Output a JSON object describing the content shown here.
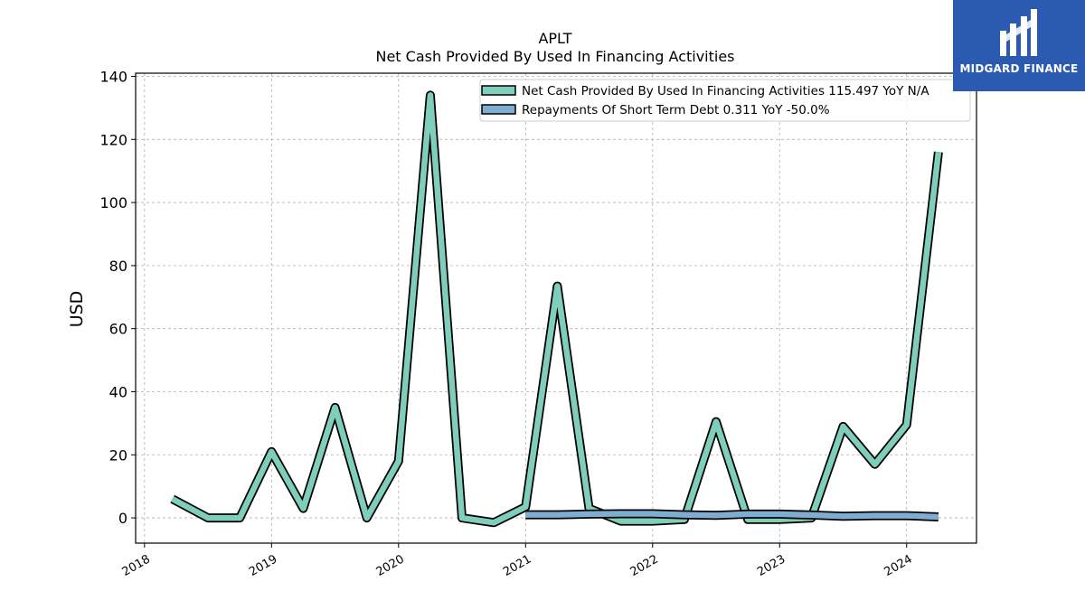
{
  "chart_data": {
    "type": "line",
    "title": "APLT",
    "subtitle": "Net Cash Provided By Used In Financing Activities",
    "ylabel": "USD",
    "xlabel": "",
    "ylim": [
      -8,
      141
    ],
    "xlim": [
      2017.93,
      2024.55
    ],
    "yticks": [
      0,
      20,
      40,
      60,
      80,
      100,
      120,
      140
    ],
    "xticks": [
      2018,
      2019,
      2020,
      2021,
      2022,
      2023,
      2024
    ],
    "grid": true,
    "legend_position": "top-right",
    "series": [
      {
        "name": "Net Cash Provided By Used In Financing Activities  115.497 YoY N/A",
        "color": "#7fcdbb",
        "x": [
          2018.22,
          2018.5,
          2018.75,
          2019.0,
          2019.25,
          2019.5,
          2019.75,
          2020.0,
          2020.25,
          2020.5,
          2020.75,
          2021.0,
          2021.25,
          2021.5,
          2021.75,
          2022.0,
          2022.25,
          2022.5,
          2022.75,
          2023.0,
          2023.25,
          2023.5,
          2023.75,
          2024.0,
          2024.25
        ],
        "y": [
          6,
          0,
          0,
          21,
          3,
          35,
          0,
          18,
          134,
          0,
          -1.5,
          3.5,
          73.5,
          3,
          -1,
          -1,
          -0.5,
          30.5,
          -0.5,
          -0.5,
          0,
          29,
          17,
          29.5,
          116
        ]
      },
      {
        "name": "Repayments Of Short Term Debt  0.311 YoY -50.0%",
        "color": "#7fadd1",
        "x": [
          2021.0,
          2021.25,
          2021.5,
          2021.75,
          2022.0,
          2022.25,
          2022.5,
          2022.75,
          2023.0,
          2023.25,
          2023.5,
          2023.75,
          2024.0,
          2024.25
        ],
        "y": [
          1.0,
          1.0,
          1.2,
          1.3,
          1.3,
          1.0,
          0.8,
          1.2,
          1.2,
          0.9,
          0.5,
          0.7,
          0.7,
          0.3
        ]
      }
    ]
  },
  "logo": {
    "name": "MIDGARD FINANCE"
  }
}
